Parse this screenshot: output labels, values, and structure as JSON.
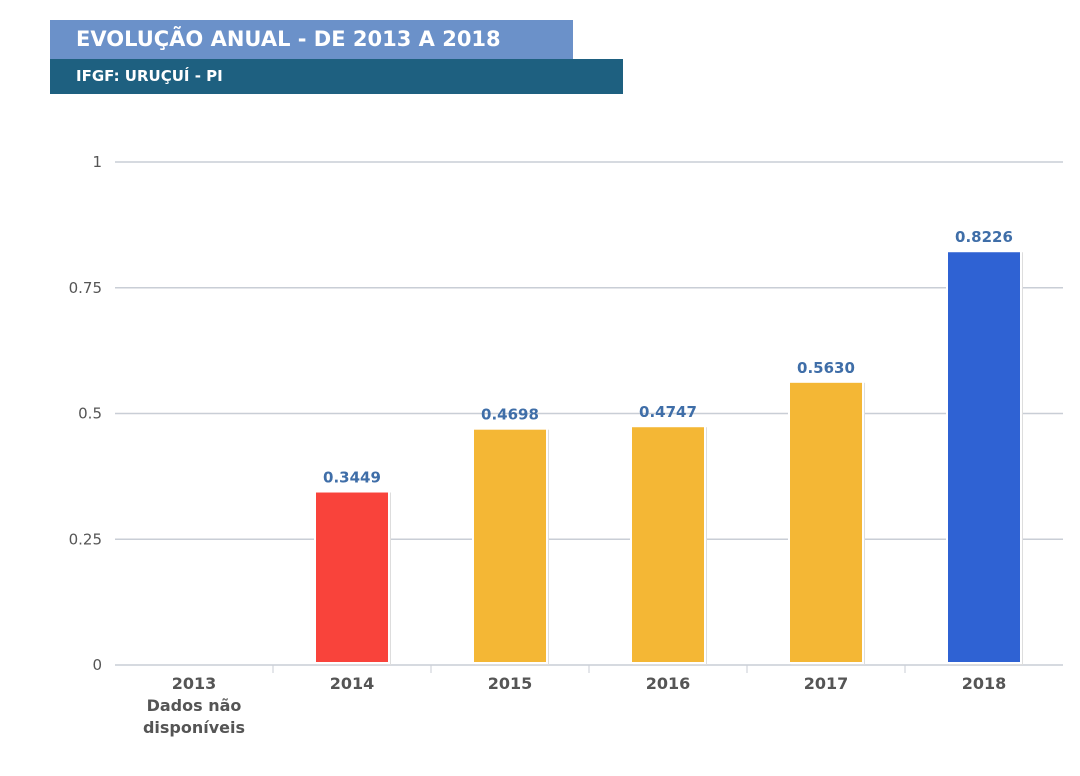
{
  "header": {
    "title": "EVOLUÇÃO ANUAL - DE 2013 A 2018",
    "subtitle": "IFGF: URUÇUÍ - PI"
  },
  "chart_data": {
    "type": "bar",
    "categories": [
      "2013",
      "2014",
      "2015",
      "2016",
      "2017",
      "2018"
    ],
    "category_notes": {
      "2013": [
        "Dados não",
        "disponíveis"
      ]
    },
    "values": [
      null,
      0.3449,
      0.4698,
      0.4747,
      0.563,
      0.8226
    ],
    "data_labels": [
      "",
      "0.3449",
      "0.4698",
      "0.4747",
      "0.5630",
      "0.8226"
    ],
    "colors": [
      null,
      "#f9433b",
      "#f4b735",
      "#f4b735",
      "#f4b735",
      "#2f62d3"
    ],
    "label_color": "#3f6ea8",
    "yticks": [
      "0",
      "0.25",
      "0.5",
      "0.75",
      "1"
    ],
    "ylim": [
      0,
      1
    ],
    "grid": true
  }
}
